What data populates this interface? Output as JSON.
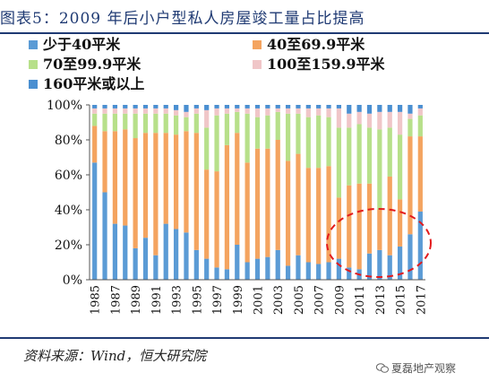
{
  "figure_title": "图表5：2009 年后小户型私人房屋竣工量占比提高",
  "source": "资料来源：Wind，恒大研究院",
  "watermark": "夏磊地产观察",
  "colors": {
    "title": "#1f3a73",
    "s1": "#5b9bd5",
    "s2": "#f4a460",
    "s3": "#b7e08a",
    "s4": "#f0c6c8",
    "s5": "#4a8fd1",
    "highlight_ellipse": "#e31a1c"
  },
  "chart_data": {
    "type": "bar",
    "stacked": true,
    "percent": true,
    "title": "",
    "xlabel": "",
    "ylabel": "",
    "ylim": [
      0,
      100
    ],
    "yticks": [
      "0%",
      "20%",
      "40%",
      "60%",
      "80%",
      "100%"
    ],
    "grid": false,
    "legend_position": "top",
    "x_tick_labels": [
      "1985",
      "1987",
      "1989",
      "1991",
      "1993",
      "1995",
      "1997",
      "1999",
      "2001",
      "2003",
      "2005",
      "2007",
      "2009",
      "2011",
      "2013",
      "2015",
      "2017"
    ],
    "categories": [
      "1985",
      "1986",
      "1987",
      "1988",
      "1989",
      "1990",
      "1991",
      "1992",
      "1993",
      "1994",
      "1995",
      "1996",
      "1997",
      "1998",
      "1999",
      "2000",
      "2001",
      "2002",
      "2003",
      "2004",
      "2005",
      "2006",
      "2007",
      "2008",
      "2009",
      "2010",
      "2011",
      "2012",
      "2013",
      "2014",
      "2015",
      "2016",
      "2017"
    ],
    "series": [
      {
        "name": "少于40平米",
        "values": [
          67,
          50,
          32,
          31,
          18,
          24,
          14,
          32,
          29,
          27,
          17,
          12,
          7,
          6,
          20,
          10,
          12,
          13,
          17,
          8,
          14,
          10,
          9,
          10,
          12,
          7,
          6,
          15,
          17,
          14,
          19,
          26,
          39
        ]
      },
      {
        "name": "40至69.9平米",
        "values": [
          21,
          35,
          53,
          55,
          63,
          60,
          70,
          52,
          54,
          58,
          67,
          51,
          55,
          71,
          64,
          57,
          63,
          62,
          63,
          60,
          58,
          54,
          55,
          55,
          35,
          47,
          49,
          40,
          23,
          45,
          27,
          56,
          43
        ]
      },
      {
        "name": "70至99.9平米",
        "values": [
          7,
          10,
          10,
          9,
          14,
          11,
          11,
          11,
          11,
          8,
          11,
          24,
          32,
          18,
          12,
          28,
          18,
          19,
          16,
          27,
          23,
          29,
          30,
          28,
          40,
          33,
          34,
          32,
          46,
          28,
          37,
          10,
          12
        ]
      },
      {
        "name": "100至159.9平米",
        "values": [
          3,
          3,
          3,
          3,
          3,
          3,
          3,
          3,
          3,
          3,
          3,
          10,
          4,
          3,
          2,
          3,
          5,
          4,
          2,
          3,
          3,
          5,
          4,
          5,
          11,
          8,
          7,
          8,
          10,
          9,
          13,
          3,
          4
        ]
      },
      {
        "name": "160平米或以上",
        "values": [
          2,
          2,
          2,
          2,
          2,
          2,
          2,
          2,
          3,
          4,
          2,
          3,
          2,
          2,
          2,
          2,
          2,
          2,
          2,
          2,
          2,
          2,
          2,
          2,
          2,
          5,
          4,
          5,
          4,
          4,
          4,
          5,
          2
        ]
      }
    ]
  }
}
